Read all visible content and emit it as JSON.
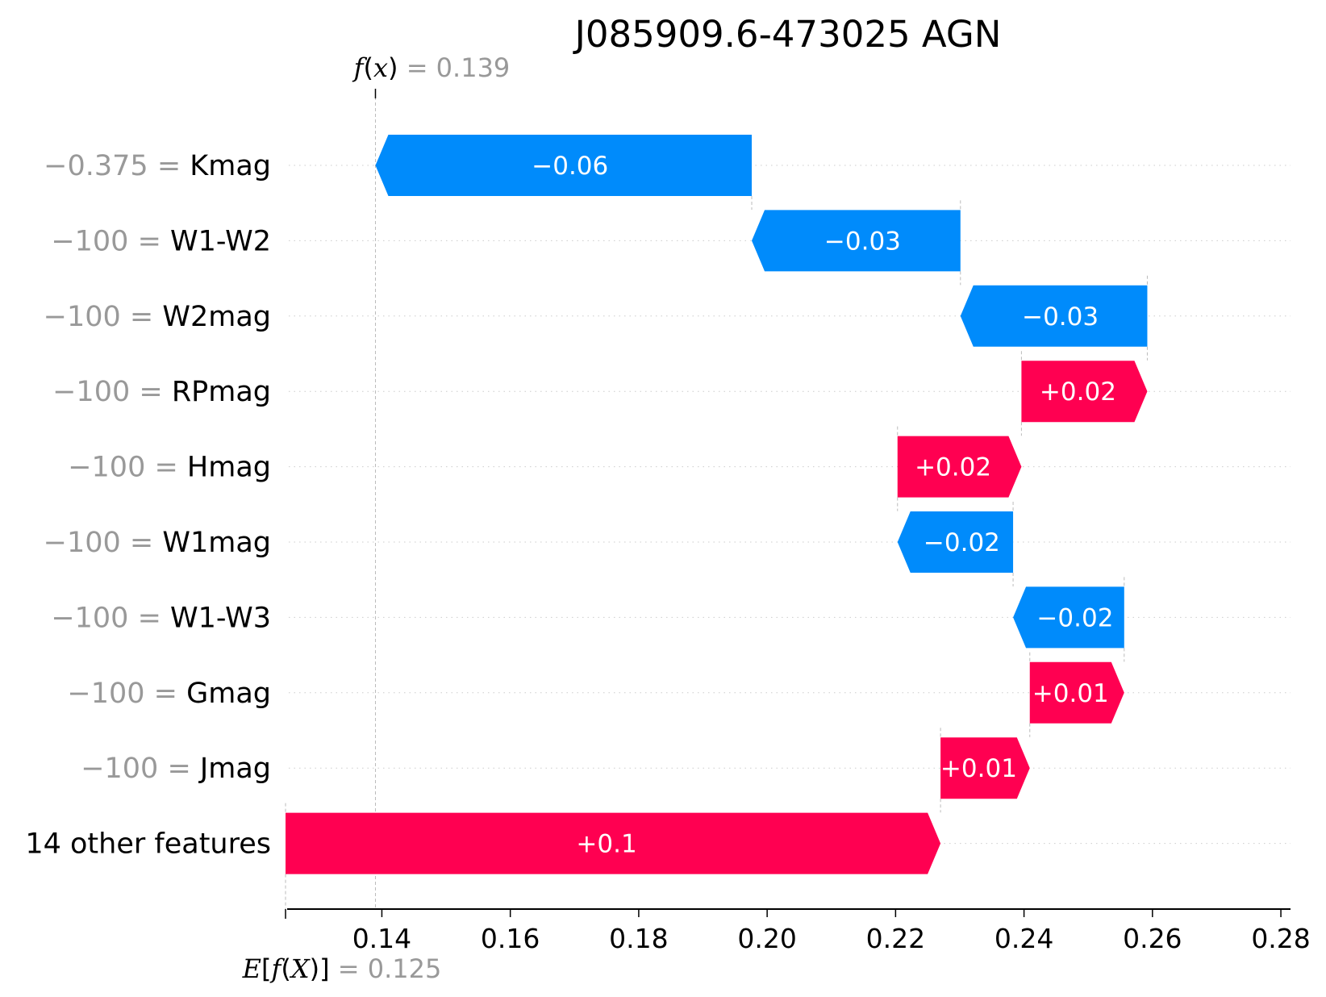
{
  "chart_data": {
    "type": "waterfall",
    "title": "J085909.6-473025 AGN",
    "fx": {
      "prefix": "f",
      "open": "(",
      "arg": "x",
      "close": ")",
      "eq": " = ",
      "value": "0.139",
      "numeric": 0.139
    },
    "efx": {
      "prefix": "E",
      "open": "[",
      "fn": "f",
      "paren_open": "(",
      "arg": "X",
      "paren_close": ")]",
      "eq": " = ",
      "value": "0.125",
      "numeric": 0.125
    },
    "xlim": [
      0.1255,
      0.2815
    ],
    "xticks": [
      0.14,
      0.16,
      0.18,
      0.2,
      0.22,
      0.24,
      0.26,
      0.28
    ],
    "xtick_labels": [
      "0.14",
      "0.16",
      "0.18",
      "0.20",
      "0.22",
      "0.24",
      "0.26",
      "0.28"
    ],
    "grid": "horizontal dotted",
    "colors": {
      "positive": "#ff0051",
      "negative": "#008bfb",
      "label_value": "#999999",
      "text": "#000000",
      "connector": "#bbbbbb"
    },
    "features": [
      {
        "feature_value": "−0.375",
        "eq": " = ",
        "name": "Kmag",
        "start": 0.1976,
        "end": 0.139,
        "label": "−0.06"
      },
      {
        "feature_value": "−100",
        "eq": " = ",
        "name": "W1-W2",
        "start": 0.2301,
        "end": 0.1976,
        "label": "−0.03"
      },
      {
        "feature_value": "−100",
        "eq": " = ",
        "name": "W2mag",
        "start": 0.2592,
        "end": 0.2301,
        "label": "−0.03"
      },
      {
        "feature_value": "−100",
        "eq": " = ",
        "name": "RPmag",
        "start": 0.2396,
        "end": 0.2592,
        "label": "+0.02"
      },
      {
        "feature_value": "−100",
        "eq": " = ",
        "name": "Hmag",
        "start": 0.2203,
        "end": 0.2396,
        "label": "+0.02"
      },
      {
        "feature_value": "−100",
        "eq": " = ",
        "name": "W1mag",
        "start": 0.2383,
        "end": 0.2203,
        "label": "−0.02"
      },
      {
        "feature_value": "−100",
        "eq": " = ",
        "name": "W1-W3",
        "start": 0.2556,
        "end": 0.2383,
        "label": "−0.02"
      },
      {
        "feature_value": "−100",
        "eq": " = ",
        "name": "Gmag",
        "start": 0.2409,
        "end": 0.2556,
        "label": "+0.01"
      },
      {
        "feature_value": "−100",
        "eq": " = ",
        "name": "Jmag",
        "start": 0.227,
        "end": 0.2409,
        "label": "+0.01"
      },
      {
        "feature_value": "",
        "eq": "",
        "name": "14 other features",
        "start": 0.125,
        "end": 0.227,
        "label": "+0.1"
      }
    ]
  }
}
